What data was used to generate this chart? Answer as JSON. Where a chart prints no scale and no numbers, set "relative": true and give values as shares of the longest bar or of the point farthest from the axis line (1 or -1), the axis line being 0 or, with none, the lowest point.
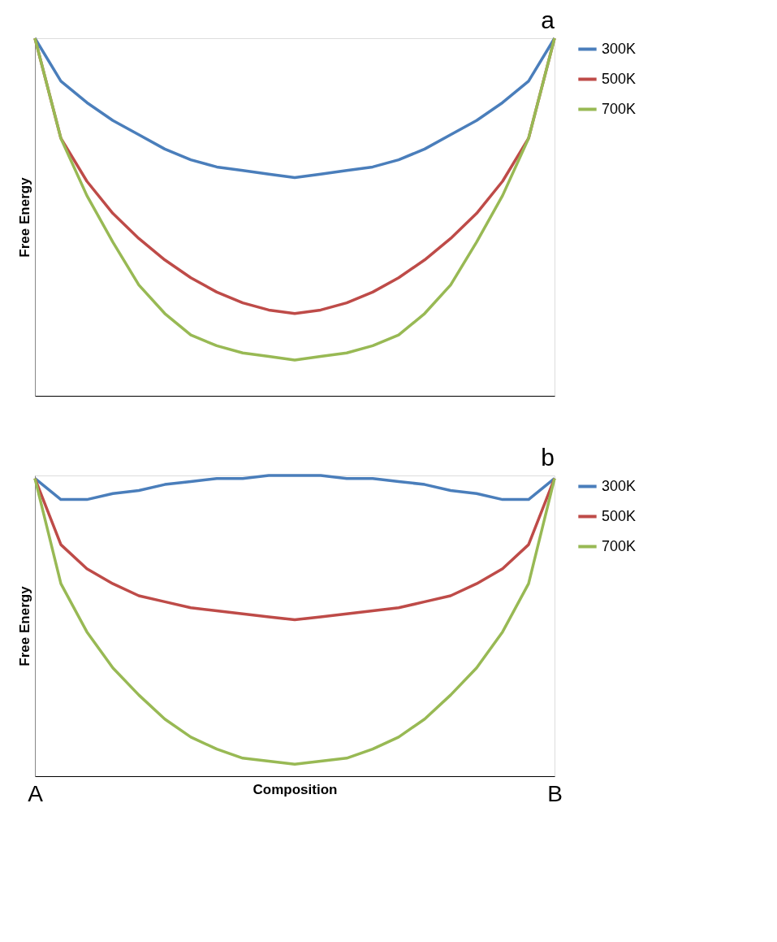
{
  "chart_data": [
    {
      "type": "line",
      "title": "a",
      "ylabel": "Free Energy",
      "relative": true,
      "tick_labels": false,
      "legend": "right",
      "marker": "none",
      "line_style": "solid",
      "categories": [
        null,
        null,
        null,
        null,
        null,
        null,
        null,
        null,
        null,
        null,
        null,
        null,
        null,
        null,
        null,
        null,
        null,
        null,
        null,
        null,
        null
      ],
      "series": [
        {
          "name": "300K",
          "color": "#4a7ebb",
          "values": [
            1,
            0.88,
            0.82,
            0.77,
            0.73,
            0.69,
            0.66,
            0.64,
            0.63,
            0.62,
            0.61,
            0.62,
            0.63,
            0.64,
            0.66,
            0.69,
            0.73,
            0.77,
            0.82,
            0.88,
            1
          ]
        },
        {
          "name": "500K",
          "color": "#be4b48",
          "values": [
            1,
            0.72,
            0.6,
            0.51,
            0.44,
            0.38,
            0.33,
            0.29,
            0.26,
            0.24,
            0.23,
            0.24,
            0.26,
            0.29,
            0.33,
            0.38,
            0.44,
            0.51,
            0.6,
            0.72,
            1
          ]
        },
        {
          "name": "700K",
          "color": "#98b954",
          "values": [
            1,
            0.72,
            0.56,
            0.43,
            0.31,
            0.23,
            0.17,
            0.14,
            0.12,
            0.11,
            0.1,
            0.11,
            0.12,
            0.14,
            0.17,
            0.23,
            0.31,
            0.43,
            0.56,
            0.72,
            1
          ]
        }
      ]
    },
    {
      "type": "line",
      "title": "b",
      "ylabel": "Free Energy",
      "xlabel": "Composition",
      "relative": true,
      "tick_labels": "x",
      "legend": "right",
      "marker": "none",
      "line_style": "solid",
      "categories": [
        "A",
        null,
        null,
        null,
        null,
        null,
        null,
        null,
        null,
        null,
        null,
        null,
        null,
        null,
        null,
        null,
        null,
        null,
        null,
        null,
        "B"
      ],
      "series": [
        {
          "name": "300K",
          "color": "#4a7ebb",
          "values": [
            0.99,
            0.92,
            0.92,
            0.94,
            0.95,
            0.97,
            0.98,
            0.99,
            0.99,
            1,
            1,
            1,
            0.99,
            0.99,
            0.98,
            0.97,
            0.95,
            0.94,
            0.92,
            0.92,
            0.99
          ]
        },
        {
          "name": "500K",
          "color": "#be4b48",
          "values": [
            0.99,
            0.77,
            0.69,
            0.64,
            0.6,
            0.58,
            0.56,
            0.55,
            0.54,
            0.53,
            0.52,
            0.53,
            0.54,
            0.55,
            0.56,
            0.58,
            0.6,
            0.64,
            0.69,
            0.77,
            0.99
          ]
        },
        {
          "name": "700K",
          "color": "#98b954",
          "values": [
            0.99,
            0.64,
            0.48,
            0.36,
            0.27,
            0.19,
            0.13,
            0.09,
            0.06,
            0.05,
            0.04,
            0.05,
            0.06,
            0.09,
            0.13,
            0.19,
            0.27,
            0.36,
            0.48,
            0.64,
            0.99
          ]
        }
      ]
    }
  ]
}
